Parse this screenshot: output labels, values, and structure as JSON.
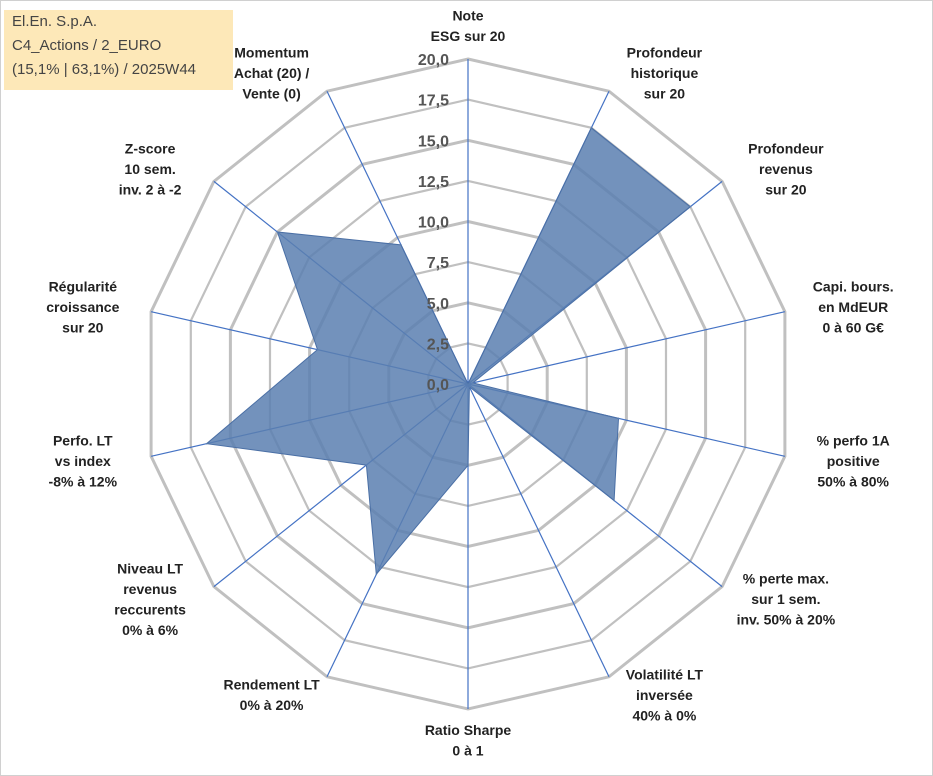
{
  "info": {
    "company": "El.En. S.p.A.",
    "category": "C4_Actions / 2_EURO",
    "stats": "(15,1% | 63,1%) / 2025W44"
  },
  "chart_data": {
    "type": "radar",
    "title": "",
    "rmin": 0,
    "rmax": 20,
    "ticks": [
      0,
      2.5,
      5,
      7.5,
      10,
      12.5,
      15,
      17.5,
      20
    ],
    "tick_labels": [
      "0,0",
      "2,5",
      "5,0",
      "7,5",
      "10,0",
      "12,5",
      "15,0",
      "17,5",
      "20,0"
    ],
    "axes": [
      {
        "label": [
          "Note",
          "ESG sur 20"
        ],
        "value": 0
      },
      {
        "label": [
          "Profondeur",
          "historique",
          "sur 20"
        ],
        "value": 17.5
      },
      {
        "label": [
          "Profondeur",
          "revenus",
          "sur 20"
        ],
        "value": 17.5
      },
      {
        "label": [
          "Capi. bours.",
          "en MdEUR",
          "0 à 60 G€"
        ],
        "value": 0.3
      },
      {
        "label": [
          "% perfo 1A",
          "positive",
          "50% à 80%"
        ],
        "value": 9.5
      },
      {
        "label": [
          "% perte max.",
          "sur 1 sem.",
          "inv. 50% à 20%"
        ],
        "value": 11.5
      },
      {
        "label": [
          "Volatilité LT",
          "inversée",
          "40% à 0%"
        ],
        "value": 0.2
      },
      {
        "label": [
          "Ratio Sharpe",
          "0 à 1"
        ],
        "value": 5.0
      },
      {
        "label": [
          "Rendement LT",
          "0% à 20%"
        ],
        "value": 13.0
      },
      {
        "label": [
          "Niveau LT",
          "revenus",
          "reccurents",
          "0% à 6%"
        ],
        "value": 8.0
      },
      {
        "label": [
          "Perfo. LT",
          "vs index",
          "-8% à 12%"
        ],
        "value": 16.5
      },
      {
        "label": [
          "Régularité",
          "croissance",
          "sur 20"
        ],
        "value": 9.5
      },
      {
        "label": [
          "Z-score",
          "10 sem.",
          "inv. 2 à -2"
        ],
        "value": 15.0
      },
      {
        "label": [
          "Momentum",
          "Achat (20) /",
          "Vente (0)"
        ],
        "value": 9.5
      }
    ],
    "series_color": "#5b7fb0",
    "grid_color": "#c0c0c0",
    "axis_color": "#4472c4"
  }
}
